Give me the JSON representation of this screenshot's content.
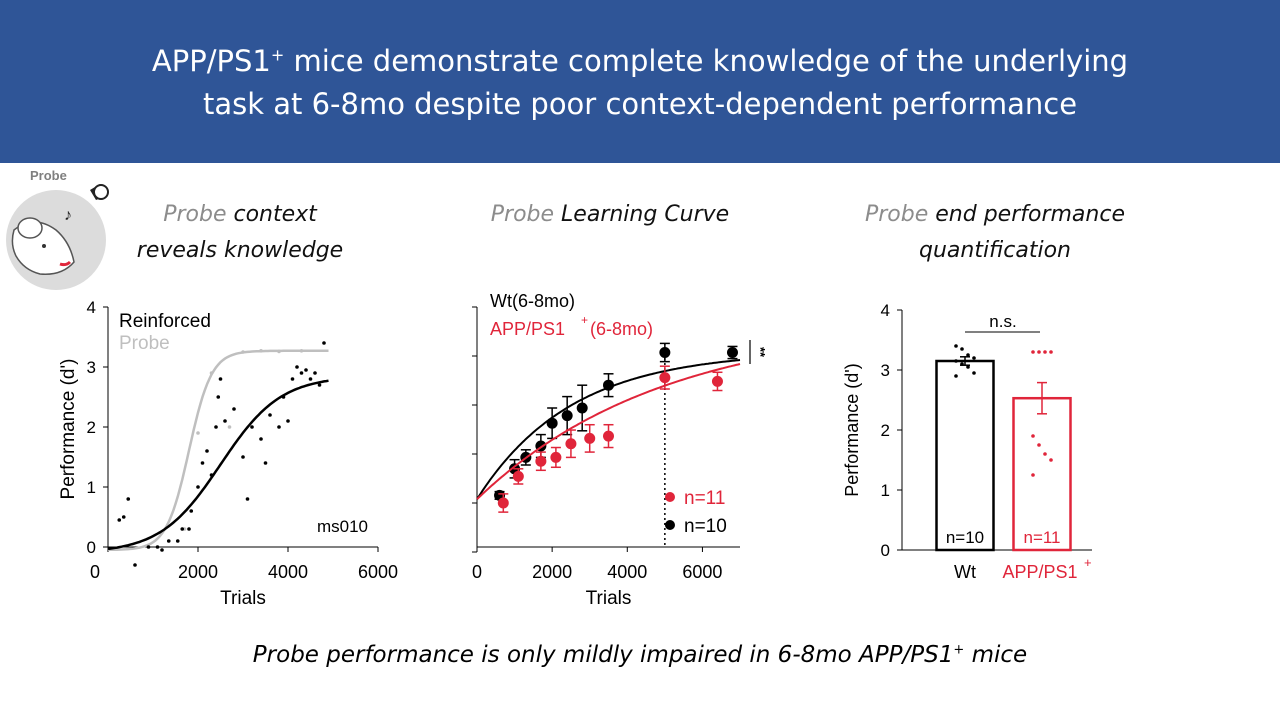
{
  "slide": {
    "title_line1_pre": "APP/PS1",
    "title_sup": "+",
    "title_line1_post": " mice demonstrate complete knowledge of the underlying",
    "title_line2": "task at 6-8mo despite poor context-dependent performance",
    "footer_pre": "Probe performance is only mildly impaired in 6-8mo APP/PS1",
    "footer_sup": "+",
    "footer_post": " mice",
    "icon_label": "Probe",
    "colors": {
      "banner": "#2f5597",
      "black": "#000000",
      "gray": "#bfbfbf",
      "red": "#e0253a"
    }
  },
  "panels": {
    "left": {
      "title_gray": "Probe",
      "title_rest1": " context",
      "title_line2": "reveals knowledge"
    },
    "middle": {
      "title_gray": "Probe",
      "title_rest1": " Learning Curve"
    },
    "right": {
      "title_gray": "Probe",
      "title_rest1": " end performance",
      "title_line2": "quantification"
    }
  },
  "chart_data": [
    {
      "id": "single-mouse",
      "type": "scatter",
      "xlabel": "Trials",
      "ylabel": "Performance (d')",
      "xlim": [
        0,
        6000
      ],
      "ylim": [
        0,
        4
      ],
      "xticks": [
        0,
        2000,
        4000,
        6000
      ],
      "yticks": [
        0,
        1,
        2,
        3,
        4
      ],
      "annotation": "ms010",
      "legend": [
        "Reinforced",
        "Probe"
      ],
      "series": [
        {
          "name": "Reinforced",
          "color": "#000000",
          "points": [
            [
              250,
              0.45
            ],
            [
              350,
              0.5
            ],
            [
              450,
              0.8
            ],
            [
              600,
              -0.3
            ],
            [
              900,
              0.0
            ],
            [
              1100,
              0.0
            ],
            [
              1200,
              -0.05
            ],
            [
              1350,
              0.1
            ],
            [
              1550,
              0.1
            ],
            [
              1650,
              0.3
            ],
            [
              1800,
              0.3
            ],
            [
              1850,
              0.6
            ],
            [
              2000,
              1.0
            ],
            [
              2100,
              1.4
            ],
            [
              2200,
              1.6
            ],
            [
              2300,
              1.2
            ],
            [
              2400,
              2.0
            ],
            [
              2450,
              2.5
            ],
            [
              2500,
              2.8
            ],
            [
              2600,
              2.1
            ],
            [
              2800,
              2.3
            ],
            [
              3000,
              1.5
            ],
            [
              3100,
              0.8
            ],
            [
              3200,
              2.0
            ],
            [
              3400,
              1.8
            ],
            [
              3500,
              1.4
            ],
            [
              3600,
              2.2
            ],
            [
              3800,
              2.0
            ],
            [
              3900,
              2.5
            ],
            [
              4000,
              2.1
            ],
            [
              4100,
              2.8
            ],
            [
              4200,
              3.0
            ],
            [
              4300,
              2.9
            ],
            [
              4400,
              2.95
            ],
            [
              4500,
              2.8
            ],
            [
              4600,
              2.9
            ],
            [
              4700,
              2.7
            ],
            [
              4800,
              3.4
            ]
          ],
          "fit": {
            "min": -0.1,
            "max": 2.85,
            "x0": 2500,
            "k": 0.0015
          }
        },
        {
          "name": "Probe",
          "color": "#bfbfbf",
          "points": [
            [
              1700,
              0.3
            ],
            [
              2000,
              1.9
            ],
            [
              2300,
              2.9
            ],
            [
              2700,
              2.0
            ],
            [
              3000,
              3.25
            ],
            [
              3400,
              3.27
            ],
            [
              3800,
              3.26
            ],
            [
              4300,
              3.27
            ]
          ],
          "fit": {
            "min": -0.05,
            "max": 3.27,
            "x0": 1800,
            "k": 0.004
          }
        }
      ]
    },
    {
      "id": "learning-curve",
      "type": "line",
      "xlabel": "Trials",
      "xlim": [
        0,
        7000
      ],
      "xticks": [
        0,
        2000,
        4000,
        6000
      ],
      "yticks_count": 6,
      "dotted_x": 5000,
      "significance": "**",
      "legend": [
        "Wt(6-8mo)",
        "APP/PS1",
        "(6-8mo)"
      ],
      "legend_sup": "+",
      "n_labels": [
        "n=11",
        "n=10"
      ],
      "series": [
        {
          "name": "Wt(6-8mo)",
          "color": "#000000",
          "points": [
            [
              600,
              0.1,
              0.05
            ],
            [
              1000,
              0.45,
              0.12
            ],
            [
              1300,
              0.6,
              0.1
            ],
            [
              1700,
              0.75,
              0.15
            ],
            [
              2000,
              1.05,
              0.2
            ],
            [
              2400,
              1.15,
              0.25
            ],
            [
              2800,
              1.25,
              0.3
            ],
            [
              3500,
              1.55,
              0.15
            ],
            [
              5000,
              1.98,
              0.12
            ],
            [
              6800,
              1.98,
              0.08
            ]
          ],
          "fit": {
            "a": 2.0,
            "b": 1.95,
            "k": 0.0004
          }
        },
        {
          "name": "APP/PS1+(6-8mo)",
          "color": "#e0253a",
          "points": [
            [
              700,
              0.0,
              0.12
            ],
            [
              1100,
              0.35,
              0.1
            ],
            [
              1700,
              0.55,
              0.12
            ],
            [
              2100,
              0.6,
              0.13
            ],
            [
              2500,
              0.78,
              0.18
            ],
            [
              3000,
              0.85,
              0.18
            ],
            [
              3500,
              0.88,
              0.15
            ],
            [
              5000,
              1.65,
              0.15
            ],
            [
              6400,
              1.6,
              0.12
            ]
          ],
          "fit": {
            "a": 2.4,
            "b": 2.35,
            "k": 0.000202
          }
        }
      ]
    },
    {
      "id": "end-performance",
      "type": "bar",
      "ylabel": "Performance (d')",
      "ylim": [
        0,
        4
      ],
      "yticks": [
        0,
        1,
        2,
        3,
        4
      ],
      "categories": [
        "Wt",
        "APP/PS1+"
      ],
      "category_label_pre": "APP/PS1",
      "category_label_sup": "+",
      "significance": "n.s.",
      "values": [
        3.15,
        2.53
      ],
      "errors": [
        0.07,
        0.26
      ],
      "n_labels": [
        "n=10",
        "n=11"
      ],
      "colors": [
        "#000000",
        "#e0253a"
      ],
      "points": [
        [
          3.4,
          3.35,
          3.25,
          3.2,
          3.15,
          3.1,
          3.05,
          2.95,
          2.9
        ],
        [
          3.3,
          3.3,
          3.3,
          3.3,
          1.9,
          1.75,
          1.6,
          1.5,
          1.25
        ]
      ]
    }
  ]
}
